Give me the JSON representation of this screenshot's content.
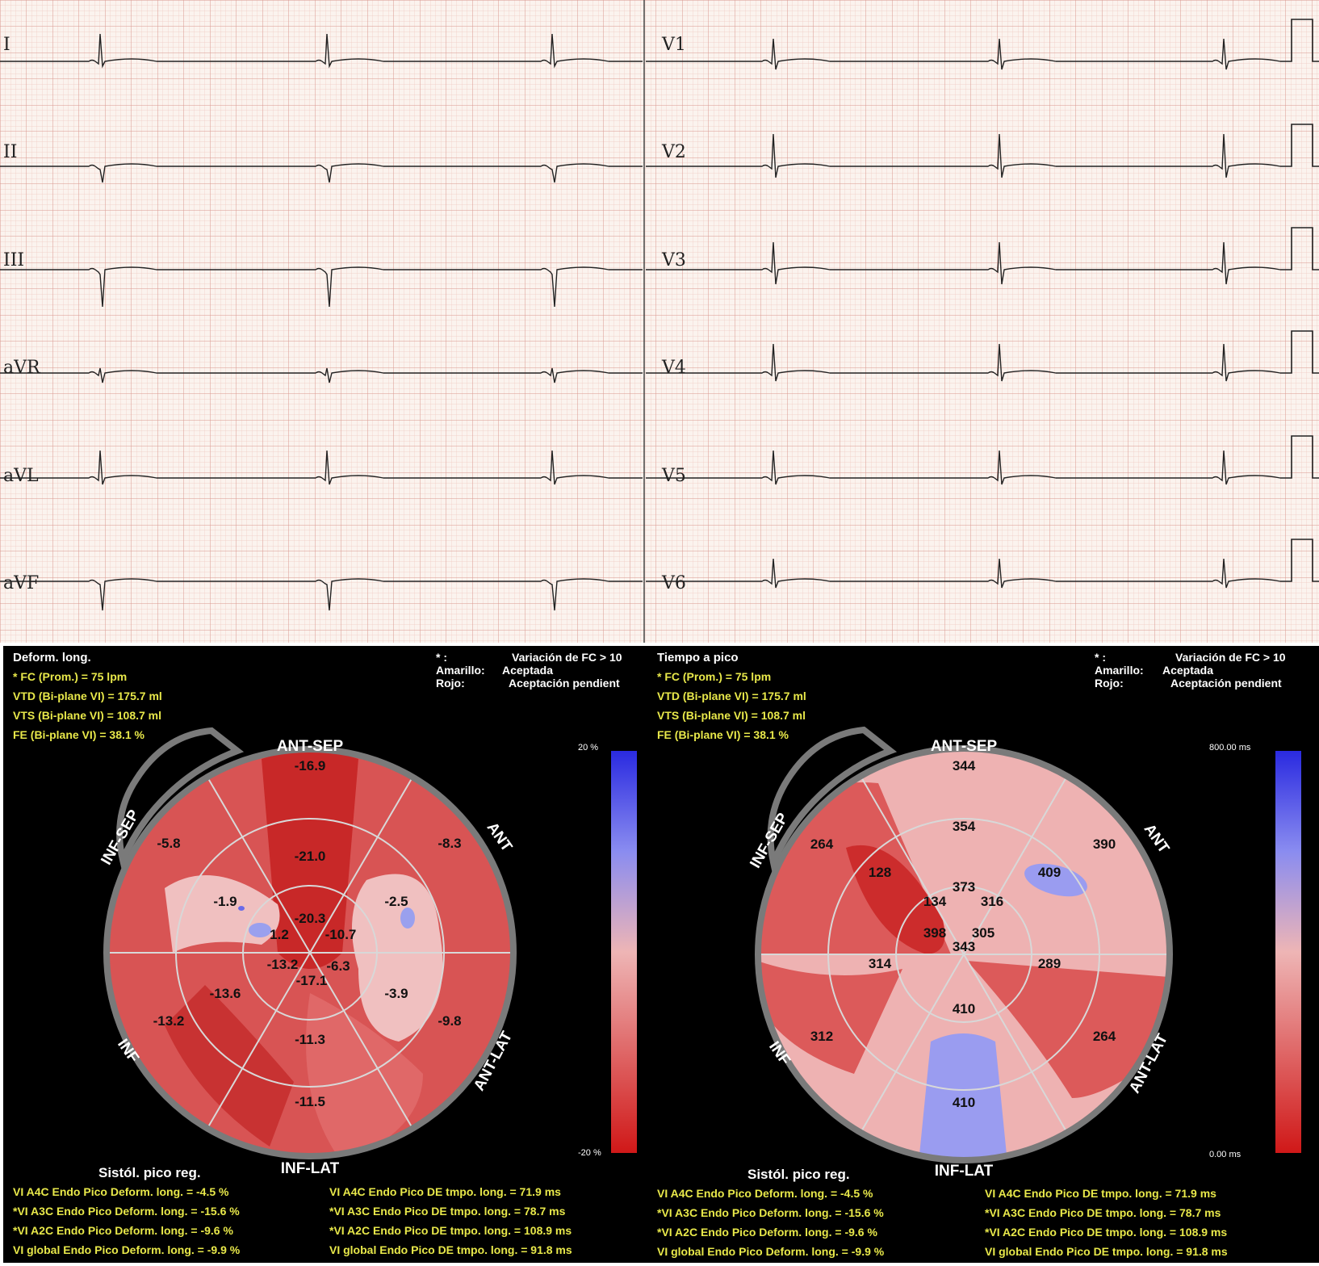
{
  "ecg": {
    "leads_left": [
      "I",
      "II",
      "III",
      "aVR",
      "aVL",
      "aVF"
    ],
    "leads_right": [
      "V1",
      "V2",
      "V3",
      "V4",
      "V5",
      "V6"
    ]
  },
  "panels": [
    {
      "title": "Deform. long.",
      "fc": "* FC (Prom.) = 75 lpm",
      "vtd": "VTD (Bi-plane VI) = 175.7 ml",
      "vts": "VTS (Bi-plane VI) = 108.7 ml",
      "fe": "FE (Bi-plane VI) = 38.1 %",
      "legend_star": "* :",
      "legend_star_text": "Variación de FC > 10",
      "legend_yellow": "Amarillo:",
      "legend_yellow_text": "Aceptada",
      "legend_red": "Rojo:",
      "legend_red_text": "Aceptación pendient",
      "scale_top": "20 %",
      "scale_bottom": "-20 %",
      "regions": {
        "ant_sep": "ANT-SEP",
        "ant": "ANT",
        "ant_lat": "ANT-LAT",
        "inf_lat": "INF-LAT",
        "inf": "INF",
        "inf_sep": "INF-SEP"
      },
      "segments": {
        "basal": [
          "-16.9",
          "-8.3",
          "-9.8",
          "-11.5",
          "-13.2",
          "-5.8"
        ],
        "mid": [
          "-21.0",
          "-2.5",
          "-3.9",
          "-11.3",
          "-13.6",
          "-1.9"
        ],
        "apical": [
          "-20.3",
          "-10.7",
          "-6.3",
          "-17.1",
          "-13.2",
          "1.2"
        ]
      },
      "sist_title": "Sistól. pico reg.",
      "stats_left": [
        "VI A4C Endo Pico Deform. long. = -4.5 %",
        "*VI A3C Endo Pico Deform. long. = -15.6 %",
        "*VI A2C Endo Pico Deform. long. = -9.6 %",
        "VI global Endo Pico Deform. long. = -9.9 %"
      ],
      "stats_right": [
        "VI A4C Endo Pico DE tmpo. long. = 71.9 ms",
        "*VI A3C Endo Pico DE tmpo. long. = 78.7 ms",
        "*VI A2C Endo Pico DE tmpo. long. = 108.9 ms",
        "VI global Endo Pico DE tmpo. long. = 91.8 ms"
      ]
    },
    {
      "title": "Tiempo a pico",
      "fc": "* FC (Prom.) = 75 lpm",
      "vtd": "VTD (Bi-plane VI) = 175.7 ml",
      "vts": "VTS (Bi-plane VI) = 108.7 ml",
      "fe": "FE (Bi-plane VI) = 38.1 %",
      "legend_star": "* :",
      "legend_star_text": "Variación de FC > 10",
      "legend_yellow": "Amarillo:",
      "legend_yellow_text": "Aceptada",
      "legend_red": "Rojo:",
      "legend_red_text": "Aceptación pendient",
      "scale_top": "800.00 ms",
      "scale_bottom": "0.00 ms",
      "regions": {
        "ant_sep": "ANT-SEP",
        "ant": "ANT",
        "ant_lat": "ANT-LAT",
        "inf_lat": "INF-LAT",
        "inf": "INF",
        "inf_sep": "INF-SEP"
      },
      "segments": {
        "basal": [
          "344",
          "390",
          "264",
          "410",
          "312",
          "264"
        ],
        "mid": [
          "354",
          "409",
          "289",
          "410",
          "314",
          "128"
        ],
        "apical": [
          "373",
          "316",
          "305",
          "343",
          "398",
          "134"
        ]
      },
      "sist_title": "Sistól. pico reg.",
      "stats_left": [
        "VI A4C Endo Pico Deform. long. = -4.5 %",
        "*VI A3C Endo Pico Deform. long. = -15.6 %",
        "*VI A2C Endo Pico Deform. long. = -9.6 %",
        "VI global Endo Pico Deform. long. = -9.9 %"
      ],
      "stats_right": [
        "VI A4C Endo Pico DE tmpo. long. = 71.9 ms",
        "*VI A3C Endo Pico DE tmpo. long. = 78.7 ms",
        "*VI A2C Endo Pico DE tmpo. long. = 108.9 ms",
        "VI global Endo Pico DE tmpo. long. = 91.8 ms"
      ]
    }
  ]
}
